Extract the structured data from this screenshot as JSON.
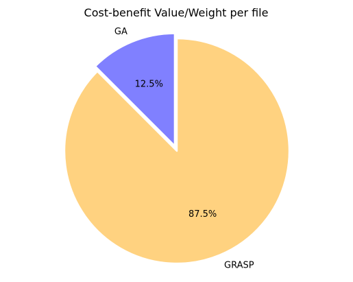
{
  "chart_data": {
    "type": "pie",
    "title": "Cost-benefit Value/Weight per file",
    "slices": [
      {
        "label": "GA",
        "value": 12.5,
        "pct_text": "12.5%",
        "color": "#8080ff",
        "exploded": true
      },
      {
        "label": "GRASP",
        "value": 87.5,
        "pct_text": "87.5%",
        "color": "#ffd280",
        "exploded": false
      }
    ],
    "start_angle_deg": 90,
    "direction": "counterclockwise",
    "legend": "none"
  }
}
